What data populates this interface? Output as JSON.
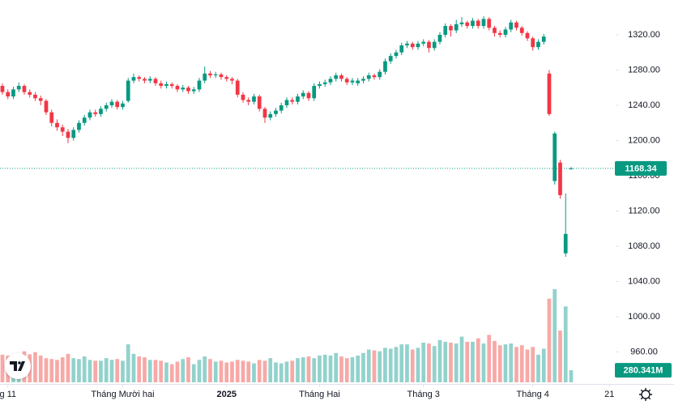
{
  "chart_data": {
    "type": "candlestick",
    "categories": [
      null,
      null,
      null,
      null,
      null,
      null,
      null,
      null,
      null,
      null,
      null,
      null,
      null,
      null,
      null,
      null,
      null,
      null,
      null,
      null,
      null,
      null,
      null,
      null,
      null,
      null,
      null,
      null,
      null,
      null,
      null,
      null,
      null,
      null,
      null,
      null,
      null,
      null,
      null,
      null,
      null,
      null,
      null,
      null,
      null,
      null,
      null,
      null,
      null,
      null,
      null,
      null,
      null,
      null,
      null,
      null,
      null,
      null,
      null,
      null,
      null,
      null,
      null,
      null,
      null,
      null,
      null,
      null,
      null,
      null,
      null,
      null,
      null,
      null,
      null,
      null,
      null,
      null,
      null,
      null,
      null,
      null,
      null,
      null,
      null,
      null,
      null,
      null,
      null,
      null,
      null,
      null,
      null,
      null,
      null,
      null,
      null,
      null,
      null,
      null,
      null,
      null,
      null,
      null,
      null
    ],
    "open": [
      1262,
      1255,
      1250,
      1258,
      1262,
      1255,
      1252,
      1248,
      1245,
      1232,
      1220,
      1215,
      1210,
      1203,
      1212,
      1220,
      1226,
      1232,
      1230,
      1236,
      1240,
      1244,
      1238,
      1245,
      1268,
      1272,
      1270,
      1268,
      1270,
      1265,
      1262,
      1264,
      1262,
      1258,
      1260,
      1256,
      1258,
      1268,
      1276,
      1274,
      1275,
      1272,
      1270,
      1268,
      1252,
      1246,
      1244,
      1250,
      1236,
      1226,
      1230,
      1234,
      1240,
      1246,
      1244,
      1250,
      1254,
      1248,
      1262,
      1264,
      1266,
      1270,
      1274,
      1270,
      1266,
      1265,
      1268,
      1270,
      1274,
      1272,
      1278,
      1290,
      1296,
      1300,
      1308,
      1310,
      1306,
      1310,
      1312,
      1305,
      1312,
      1320,
      1330,
      1325,
      1332,
      1334,
      1330,
      1336,
      1330,
      1338,
      1328,
      1322,
      1320,
      1326,
      1334,
      1328,
      1322,
      1316,
      1306,
      1312,
      1276,
      1154,
      1175,
      1072,
      1168
    ],
    "high": [
      1265,
      1258,
      1261,
      1266,
      1264,
      1258,
      1255,
      1251,
      1247,
      1235,
      1224,
      1218,
      1213,
      1215,
      1223,
      1229,
      1235,
      1235,
      1239,
      1243,
      1247,
      1246,
      1245,
      1271,
      1276,
      1274,
      1272,
      1273,
      1272,
      1268,
      1267,
      1266,
      1264,
      1263,
      1262,
      1261,
      1271,
      1284,
      1279,
      1278,
      1277,
      1274,
      1272,
      1270,
      1255,
      1249,
      1253,
      1252,
      1238,
      1233,
      1237,
      1243,
      1249,
      1249,
      1253,
      1257,
      1256,
      1265,
      1267,
      1269,
      1273,
      1277,
      1276,
      1272,
      1271,
      1271,
      1273,
      1277,
      1276,
      1281,
      1293,
      1299,
      1303,
      1311,
      1313,
      1312,
      1313,
      1315,
      1314,
      1315,
      1323,
      1333,
      1332,
      1337,
      1340,
      1336,
      1339,
      1338,
      1341,
      1340,
      1330,
      1325,
      1329,
      1337,
      1336,
      1330,
      1324,
      1318,
      1315,
      1321,
      1280,
      1210,
      1178,
      1140,
      1170
    ],
    "low": [
      1252,
      1247,
      1247,
      1255,
      1252,
      1249,
      1245,
      1240,
      1229,
      1216,
      1211,
      1205,
      1197,
      1200,
      1209,
      1217,
      1223,
      1227,
      1227,
      1233,
      1237,
      1235,
      1235,
      1243,
      1265,
      1267,
      1265,
      1265,
      1262,
      1259,
      1259,
      1259,
      1255,
      1255,
      1253,
      1253,
      1255,
      1265,
      1271,
      1271,
      1269,
      1267,
      1264,
      1249,
      1243,
      1240,
      1241,
      1233,
      1220,
      1223,
      1227,
      1231,
      1237,
      1241,
      1241,
      1247,
      1245,
      1245,
      1259,
      1261,
      1263,
      1267,
      1267,
      1263,
      1263,
      1262,
      1265,
      1267,
      1269,
      1269,
      1275,
      1287,
      1293,
      1297,
      1305,
      1303,
      1303,
      1307,
      1300,
      1302,
      1309,
      1317,
      1318,
      1322,
      1329,
      1327,
      1327,
      1327,
      1327,
      1325,
      1318,
      1317,
      1317,
      1323,
      1325,
      1319,
      1313,
      1302,
      1303,
      1309,
      1228,
      1150,
      1134,
      1068,
      1167
    ],
    "close": [
      1255,
      1250,
      1258,
      1262,
      1255,
      1252,
      1248,
      1245,
      1232,
      1220,
      1215,
      1210,
      1203,
      1212,
      1220,
      1226,
      1232,
      1230,
      1236,
      1240,
      1244,
      1238,
      1242,
      1268,
      1272,
      1270,
      1268,
      1270,
      1265,
      1262,
      1264,
      1262,
      1258,
      1260,
      1256,
      1258,
      1268,
      1276,
      1274,
      1275,
      1272,
      1270,
      1268,
      1252,
      1246,
      1244,
      1250,
      1236,
      1226,
      1230,
      1234,
      1240,
      1246,
      1244,
      1250,
      1254,
      1248,
      1262,
      1264,
      1266,
      1270,
      1274,
      1270,
      1266,
      1268,
      1268,
      1270,
      1274,
      1272,
      1278,
      1290,
      1296,
      1300,
      1308,
      1310,
      1306,
      1310,
      1312,
      1305,
      1312,
      1320,
      1330,
      1325,
      1332,
      1334,
      1330,
      1336,
      1330,
      1338,
      1328,
      1322,
      1320,
      1326,
      1334,
      1328,
      1322,
      1316,
      1306,
      1312,
      1318,
      1230,
      1208,
      1138,
      1094,
      1168.34
    ],
    "volume": {
      "values": [
        640,
        620,
        600,
        560,
        720,
        650,
        700,
        620,
        560,
        540,
        520,
        580,
        660,
        560,
        540,
        600,
        520,
        500,
        500,
        560,
        520,
        540,
        500,
        880,
        660,
        600,
        580,
        520,
        520,
        500,
        460,
        420,
        480,
        540,
        580,
        420,
        520,
        600,
        540,
        480,
        500,
        460,
        480,
        520,
        500,
        480,
        440,
        520,
        500,
        560,
        460,
        440,
        480,
        500,
        560,
        580,
        600,
        560,
        620,
        640,
        620,
        680,
        600,
        560,
        580,
        620,
        680,
        760,
        740,
        720,
        800,
        780,
        820,
        880,
        880,
        760,
        800,
        920,
        900,
        840,
        980,
        940,
        920,
        900,
        1060,
        940,
        940,
        1020,
        900,
        1100,
        960,
        860,
        880,
        900,
        820,
        860,
        760,
        820,
        640,
        780,
        1940,
        2160,
        1200,
        1760,
        280.341
      ],
      "last_label": "280.341M"
    },
    "up_color": "#089981",
    "down_color": "#f23645",
    "volume_up_color": "#92d2cc",
    "volume_down_color": "#f7a9a7",
    "xlim": [
      -0.44,
      112.15
    ],
    "xticks": [
      {
        "value": 1,
        "label": "g 11"
      },
      {
        "value": 22,
        "label": "Tháng Mười hai"
      },
      {
        "value": 41,
        "label": "2025"
      },
      {
        "value": 58,
        "label": "Tháng Hai"
      },
      {
        "value": 77,
        "label": "Tháng 3"
      },
      {
        "value": 97,
        "label": "Tháng 4"
      },
      {
        "value": 111,
        "label": "21"
      }
    ],
    "ylim": [
      923.7,
      1359.5
    ],
    "yticks": [
      {
        "value": 960,
        "label": "960.00"
      },
      {
        "value": 1000,
        "label": "1000.00"
      },
      {
        "value": 1040,
        "label": "1040.00"
      },
      {
        "value": 1080,
        "label": "1080.00"
      },
      {
        "value": 1120,
        "label": "1120.00"
      },
      {
        "value": 1160,
        "label": "1160.00"
      },
      {
        "value": 1200,
        "label": "1200.00"
      },
      {
        "value": 1240,
        "label": "1240.00"
      },
      {
        "value": 1280,
        "label": "1280.00"
      },
      {
        "value": 1320,
        "label": "1320.00"
      }
    ],
    "grid": false
  }
}
